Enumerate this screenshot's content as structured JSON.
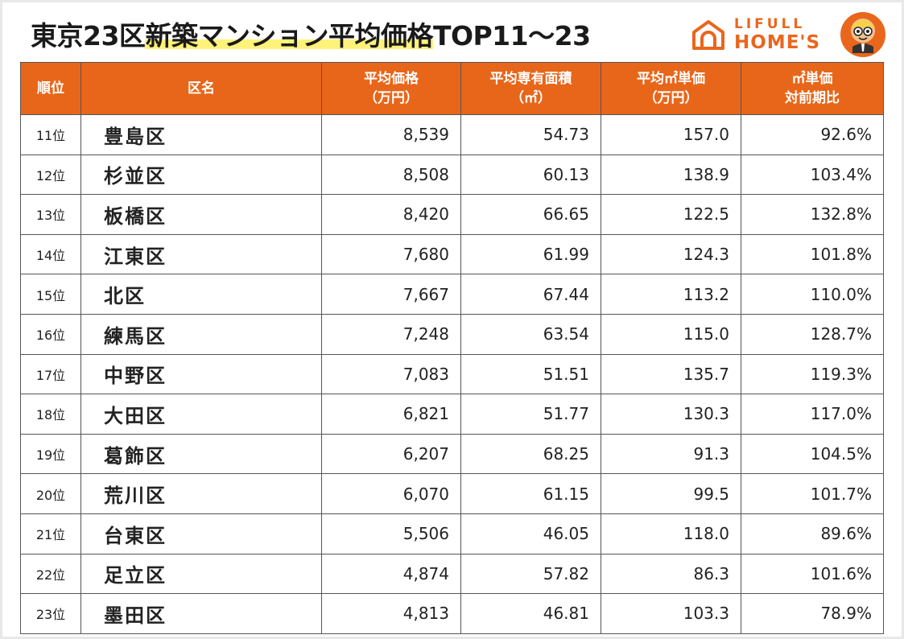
{
  "title": {
    "part1": "東京23区",
    "highlight": "新築マンション平均価格",
    "part2": "TOP11〜23"
  },
  "logo": {
    "line1": "LIFULL",
    "line2": "HOME'S"
  },
  "colors": {
    "header_bg": "#e8661a",
    "logo": "#e9661d",
    "highlight": "#fff27a"
  },
  "table": {
    "headers": {
      "rank": "順位",
      "name": "区名",
      "price_1": "平均価格",
      "price_2": "（万円）",
      "area_1": "平均専有面積",
      "area_2": "（㎡）",
      "unit_1": "平均㎡単価",
      "unit_2": "（万円）",
      "yoy_1": "㎡単価",
      "yoy_2": "対前期比"
    },
    "rows": [
      {
        "rank": "11位",
        "name": "豊島区",
        "price": "8,539",
        "area": "54.73",
        "unit": "157.0",
        "yoy": "92.6%"
      },
      {
        "rank": "12位",
        "name": "杉並区",
        "price": "8,508",
        "area": "60.13",
        "unit": "138.9",
        "yoy": "103.4%"
      },
      {
        "rank": "13位",
        "name": "板橋区",
        "price": "8,420",
        "area": "66.65",
        "unit": "122.5",
        "yoy": "132.8%"
      },
      {
        "rank": "14位",
        "name": "江東区",
        "price": "7,680",
        "area": "61.99",
        "unit": "124.3",
        "yoy": "101.8%"
      },
      {
        "rank": "15位",
        "name": "北区",
        "price": "7,667",
        "area": "67.44",
        "unit": "113.2",
        "yoy": "110.0%"
      },
      {
        "rank": "16位",
        "name": "練馬区",
        "price": "7,248",
        "area": "63.54",
        "unit": "115.0",
        "yoy": "128.7%"
      },
      {
        "rank": "17位",
        "name": "中野区",
        "price": "7,083",
        "area": "51.51",
        "unit": "135.7",
        "yoy": "119.3%"
      },
      {
        "rank": "18位",
        "name": "大田区",
        "price": "6,821",
        "area": "51.77",
        "unit": "130.3",
        "yoy": "117.0%"
      },
      {
        "rank": "19位",
        "name": "葛飾区",
        "price": "6,207",
        "area": "68.25",
        "unit": "91.3",
        "yoy": "104.5%"
      },
      {
        "rank": "20位",
        "name": "荒川区",
        "price": "6,070",
        "area": "61.15",
        "unit": "99.5",
        "yoy": "101.7%"
      },
      {
        "rank": "21位",
        "name": "台東区",
        "price": "5,506",
        "area": "46.05",
        "unit": "118.0",
        "yoy": "89.6%"
      },
      {
        "rank": "22位",
        "name": "足立区",
        "price": "4,874",
        "area": "57.82",
        "unit": "86.3",
        "yoy": "101.6%"
      },
      {
        "rank": "23位",
        "name": "墨田区",
        "price": "4,813",
        "area": "46.81",
        "unit": "103.3",
        "yoy": "78.9%"
      }
    ]
  }
}
